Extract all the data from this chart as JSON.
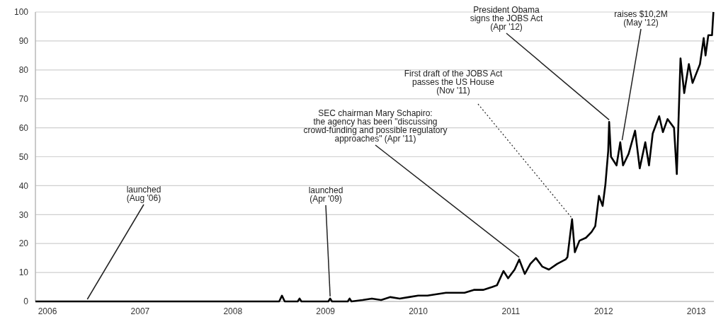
{
  "chart_data": {
    "type": "line",
    "x": [
      2005.87,
      2008.5,
      2008.53,
      2008.56,
      2008.7,
      2008.72,
      2008.74,
      2009.03,
      2009.05,
      2009.07,
      2009.24,
      2009.26,
      2009.28,
      2009.4,
      2009.5,
      2009.6,
      2009.7,
      2009.8,
      2009.9,
      2010.0,
      2010.1,
      2010.2,
      2010.3,
      2010.4,
      2010.5,
      2010.6,
      2010.7,
      2010.8,
      2010.85,
      2010.92,
      2010.97,
      2011.04,
      2011.09,
      2011.15,
      2011.21,
      2011.27,
      2011.34,
      2011.41,
      2011.5,
      2011.59,
      2011.61,
      2011.66,
      2011.69,
      2011.74,
      2011.81,
      2011.87,
      2011.91,
      2011.95,
      2011.99,
      2012.02,
      2012.05,
      2012.06,
      2012.08,
      2012.14,
      2012.18,
      2012.21,
      2012.27,
      2012.34,
      2012.39,
      2012.45,
      2012.49,
      2012.53,
      2012.6,
      2012.64,
      2012.69,
      2012.76,
      2012.79,
      2012.83,
      2012.87,
      2012.92,
      2012.96,
      2013.04,
      2013.08,
      2013.1,
      2013.13,
      2013.17,
      2013.185
    ],
    "series": [
      {
        "color": "#000000",
        "values": [
          0,
          0,
          2,
          0,
          0,
          1,
          0,
          0,
          1,
          0,
          0,
          1,
          0,
          0.5,
          1,
          0.5,
          1.5,
          1,
          1.5,
          2,
          2,
          2.5,
          3,
          3,
          3,
          4,
          4,
          5,
          5.6,
          10.5,
          8,
          11,
          14.5,
          9.5,
          13,
          15,
          12,
          11,
          13,
          14.5,
          15.3,
          28.4,
          17,
          21,
          22,
          24,
          26,
          36.5,
          33,
          40.5,
          52,
          62,
          50,
          47,
          55,
          47,
          51,
          59,
          46,
          55,
          47,
          58,
          64,
          58.5,
          63,
          60,
          44,
          84,
          72,
          82,
          75.5,
          82,
          91,
          85,
          92,
          92,
          100
        ]
      }
    ],
    "xlim": [
      2005.87,
      2013.19
    ],
    "xticks": [
      2006,
      2007,
      2008,
      2009,
      2010,
      2011,
      2012,
      2013
    ],
    "ylim": [
      0,
      100
    ],
    "yticks": [
      0,
      10,
      20,
      30,
      40,
      50,
      60,
      70,
      80,
      90,
      100
    ],
    "grid": "y",
    "annotations": [
      {
        "text": "launched\n(Aug '06)",
        "x": 2006.43,
        "y": 0
      },
      {
        "text": "launched\n(Apr '09)",
        "x": 2009.05,
        "y": 1
      },
      {
        "text": "SEC chairman Mary Schapiro:\nthe agency has been \"discussing\ncrowd-funding and possible regulatory\napproaches\" (Apr '11)",
        "x": 2011.09,
        "y": 14.5
      },
      {
        "text": "First draft of the JOBS Act\npasses the US House\n(Nov '11)",
        "x": 2011.66,
        "y": 28
      },
      {
        "text": "President Obama\nsigns the JOBS Act\n(Apr '12)",
        "x": 2012.06,
        "y": 62
      },
      {
        "text": "raises $10,2M\n(May '12)",
        "x": 2012.2,
        "y": 55
      }
    ]
  }
}
